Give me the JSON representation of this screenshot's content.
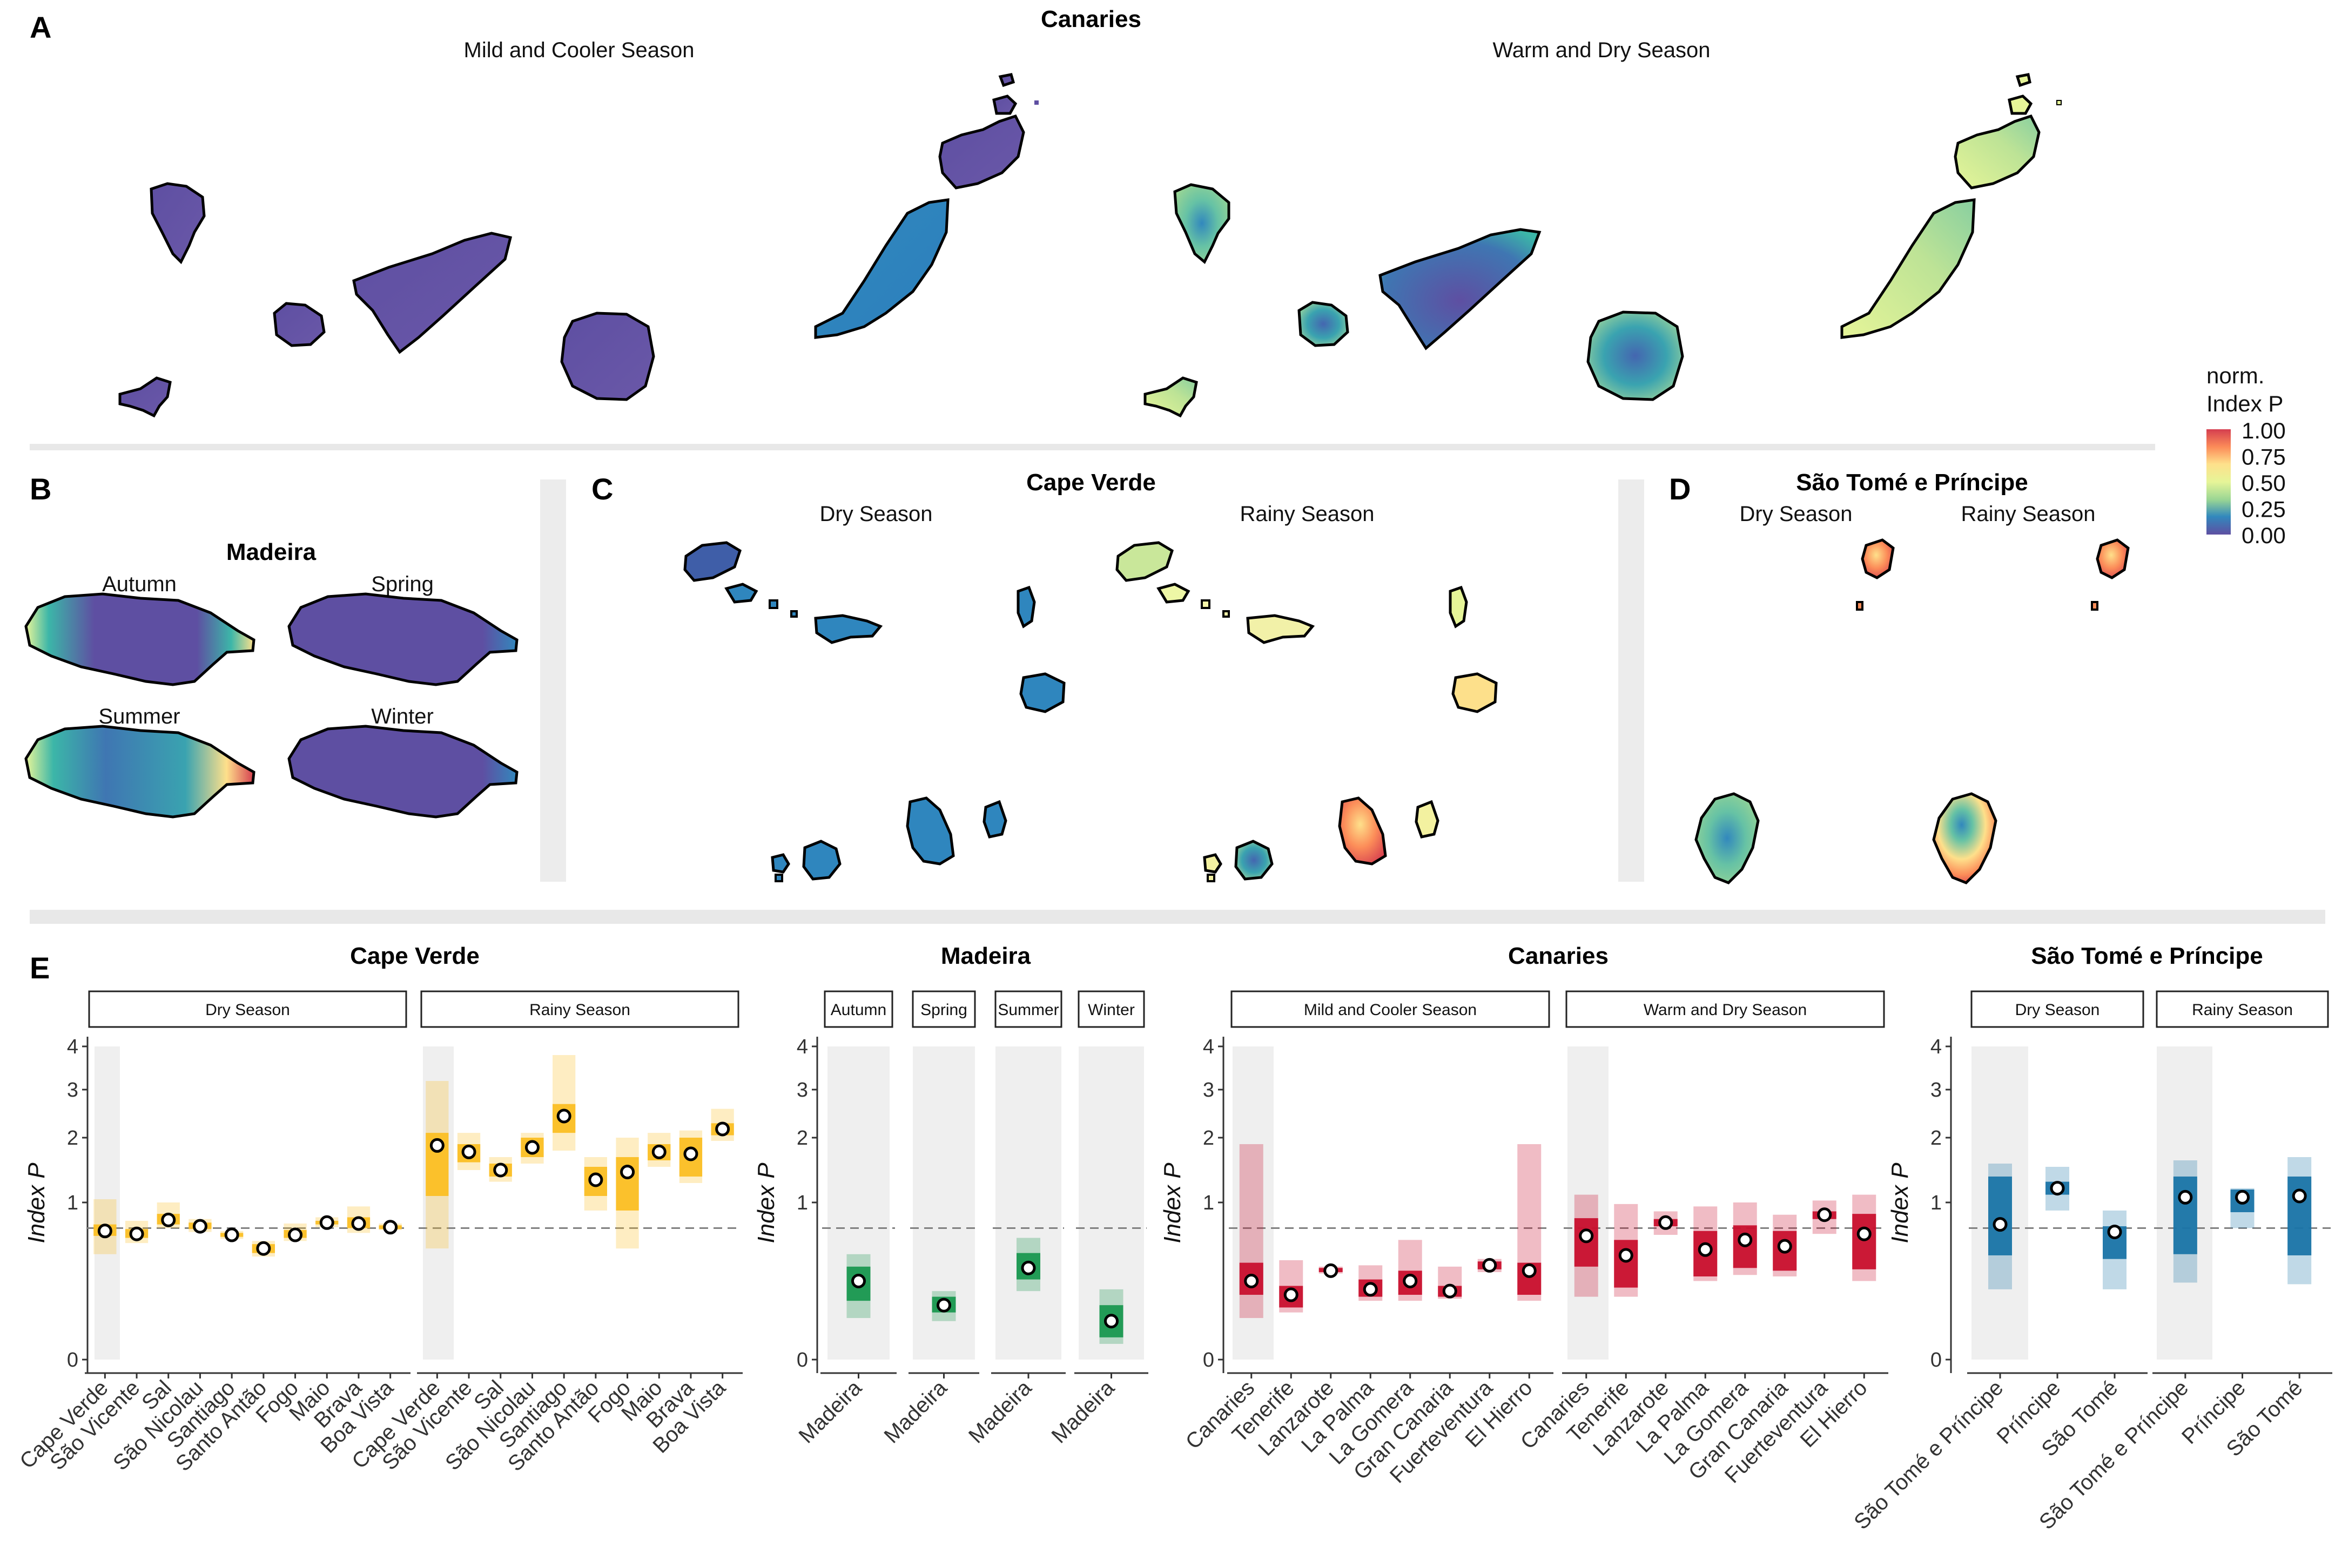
{
  "panels": {
    "A": "A",
    "B": "B",
    "C": "C",
    "D": "D",
    "E": "E"
  },
  "maps": {
    "canaries": {
      "title": "Canaries",
      "season1": "Mild and Cooler Season",
      "season2": "Warm and Dry Season"
    },
    "madeira": {
      "title": "Madeira",
      "autumn": "Autumn",
      "spring": "Spring",
      "summer": "Summer",
      "winter": "Winter"
    },
    "cape_verde": {
      "title": "Cape Verde",
      "season1": "Dry Season",
      "season2": "Rainy Season"
    },
    "stp": {
      "title": "São Tomé e Príncipe",
      "season1": "Dry Season",
      "season2": "Rainy Season"
    }
  },
  "legend": {
    "title_line1": "norm.",
    "title_line2": "Index P",
    "labels": [
      "1.00",
      "0.75",
      "0.50",
      "0.25",
      "0.00"
    ],
    "colors": [
      "#d53e4f",
      "#fc8d59",
      "#fee08b",
      "#e6f598",
      "#99d594",
      "#3288bd",
      "#5e4fa2"
    ]
  },
  "colors": {
    "cape_verde": "#fbbf24",
    "madeira": "#1a9850",
    "canaries": "#c8102e",
    "stp": "#1b75a8",
    "shade": "#efefef",
    "dashed": "#808080"
  },
  "chart_data": [
    {
      "type": "box",
      "title": "Cape Verde",
      "ylabel": "Index P",
      "yticks": [
        "0",
        "1",
        "2",
        "3",
        "4"
      ],
      "reference_line": 0.7,
      "facets": [
        {
          "strip": "Dry Season",
          "categories": [
            "Cape Verde",
            "São Vicente",
            "Sal",
            "São Nicolau",
            "Santiago",
            "Santo Antão",
            "Fogo",
            "Maio",
            "Brava",
            "Boa Vista"
          ],
          "median": [
            0.67,
            0.64,
            0.79,
            0.72,
            0.63,
            0.5,
            0.63,
            0.76,
            0.75,
            0.71
          ],
          "q1": [
            0.62,
            0.6,
            0.74,
            0.69,
            0.61,
            0.46,
            0.6,
            0.74,
            0.7,
            0.69
          ],
          "q3": [
            0.74,
            0.69,
            0.86,
            0.76,
            0.65,
            0.54,
            0.68,
            0.78,
            0.82,
            0.73
          ],
          "lower": [
            0.45,
            0.55,
            0.7,
            0.66,
            0.59,
            0.43,
            0.57,
            0.71,
            0.65,
            0.68
          ],
          "upper": [
            1.05,
            0.78,
            1.0,
            0.8,
            0.67,
            0.57,
            0.75,
            0.82,
            0.95,
            0.75
          ]
        },
        {
          "strip": "Rainy Season",
          "categories": [
            "Cape Verde",
            "São Vicente",
            "Sal",
            "São Nicolau",
            "Santiago",
            "Santo Antão",
            "Fogo",
            "Maio",
            "Brava",
            "Boa Vista"
          ],
          "median": [
            1.88,
            1.78,
            1.5,
            1.85,
            2.45,
            1.35,
            1.47,
            1.78,
            1.75,
            2.18
          ],
          "q1": [
            1.1,
            1.62,
            1.4,
            1.7,
            2.1,
            1.1,
            0.9,
            1.65,
            1.4,
            2.05
          ],
          "q3": [
            2.1,
            1.9,
            1.6,
            2.0,
            2.7,
            1.55,
            1.7,
            1.9,
            2.0,
            2.3
          ],
          "lower": [
            0.5,
            1.5,
            1.32,
            1.6,
            1.8,
            0.9,
            0.5,
            1.55,
            1.3,
            1.95
          ],
          "upper": [
            3.2,
            2.1,
            1.7,
            2.1,
            3.8,
            1.7,
            2.0,
            2.1,
            2.15,
            2.6
          ]
        }
      ]
    },
    {
      "type": "box",
      "title": "Madeira",
      "ylabel": "Index P",
      "yticks": [
        "0",
        "1",
        "2",
        "3",
        "4"
      ],
      "reference_line": 0.7,
      "facets": [
        {
          "strip": "Autumn",
          "categories": [
            "Madeira"
          ],
          "median": [
            0.25
          ],
          "q1": [
            0.14
          ],
          "q3": [
            0.35
          ],
          "lower": [
            0.07
          ],
          "upper": [
            0.45
          ]
        },
        {
          "strip": "Spring",
          "categories": [
            "Madeira"
          ],
          "median": [
            0.12
          ],
          "q1": [
            0.09
          ],
          "q3": [
            0.16
          ],
          "lower": [
            0.06
          ],
          "upper": [
            0.19
          ]
        },
        {
          "strip": "Summer",
          "categories": [
            "Madeira"
          ],
          "median": [
            0.34
          ],
          "q1": [
            0.26
          ],
          "q3": [
            0.46
          ],
          "lower": [
            0.19
          ],
          "upper": [
            0.6
          ]
        },
        {
          "strip": "Winter",
          "categories": [
            "Madeira"
          ],
          "median": [
            0.06
          ],
          "q1": [
            0.02
          ],
          "q3": [
            0.12
          ],
          "lower": [
            0.01
          ],
          "upper": [
            0.2
          ]
        }
      ]
    },
    {
      "type": "box",
      "title": "Canaries",
      "ylabel": "Index P",
      "yticks": [
        "0",
        "1",
        "2",
        "3",
        "4"
      ],
      "reference_line": 0.7,
      "facets": [
        {
          "strip": "Mild and Cooler Season",
          "categories": [
            "Canaries",
            "Tenerife",
            "Lanzarote",
            "La Palma",
            "La Gomera",
            "Gran Canaria",
            "Fuerteventura",
            "El Hierro"
          ],
          "median": [
            0.25,
            0.17,
            0.32,
            0.2,
            0.25,
            0.19,
            0.36,
            0.32
          ],
          "q1": [
            0.17,
            0.11,
            0.31,
            0.16,
            0.17,
            0.16,
            0.33,
            0.17
          ],
          "q3": [
            0.38,
            0.22,
            0.34,
            0.26,
            0.32,
            0.22,
            0.39,
            0.38
          ],
          "lower": [
            0.07,
            0.09,
            0.3,
            0.14,
            0.14,
            0.15,
            0.31,
            0.14
          ],
          "upper": [
            1.9,
            0.4,
            0.35,
            0.36,
            0.58,
            0.35,
            0.41,
            1.9
          ]
        },
        {
          "strip": "Warm and Dry Season",
          "categories": [
            "Canaries",
            "Tenerife",
            "Lanzarote",
            "La Palma",
            "La Gomera",
            "Gran Canaria",
            "Fuerteventura",
            "El Hierro"
          ],
          "median": [
            0.62,
            0.44,
            0.76,
            0.49,
            0.58,
            0.52,
            0.85,
            0.64
          ],
          "q1": [
            0.35,
            0.21,
            0.72,
            0.28,
            0.34,
            0.32,
            0.8,
            0.33
          ],
          "q3": [
            0.81,
            0.58,
            0.8,
            0.67,
            0.73,
            0.67,
            0.89,
            0.86
          ],
          "lower": [
            0.16,
            0.16,
            0.63,
            0.25,
            0.29,
            0.28,
            0.64,
            0.25
          ],
          "upper": [
            1.12,
            0.98,
            0.89,
            0.95,
            1.0,
            0.85,
            1.03,
            1.12
          ]
        },
        {
          "strip_placeholder": ""
        }
      ]
    },
    {
      "type": "box",
      "title": "São Tomé e Príncipe",
      "ylabel": "Index P",
      "yticks": [
        "0",
        "1",
        "2",
        "3",
        "4"
      ],
      "reference_line": 0.7,
      "facets": [
        {
          "strip": "Dry Season",
          "categories": [
            "São Tomé e Príncipe",
            "Príncipe",
            "São Tomé"
          ],
          "median": [
            0.74,
            1.22,
            0.66
          ],
          "q1": [
            0.44,
            1.12,
            0.41
          ],
          "q3": [
            1.4,
            1.32,
            0.72
          ],
          "lower": [
            0.2,
            0.9,
            0.2
          ],
          "upper": [
            1.6,
            1.55,
            0.9
          ]
        },
        {
          "strip": "Rainy Season",
          "categories": [
            "São Tomé e Príncipe",
            "Príncipe",
            "São Tomé"
          ],
          "median": [
            1.08,
            1.08,
            1.1
          ],
          "q1": [
            0.45,
            0.88,
            0.44
          ],
          "q3": [
            1.4,
            1.2,
            1.4
          ],
          "lower": [
            0.24,
            0.7,
            0.23
          ],
          "upper": [
            1.65,
            1.22,
            1.7
          ]
        }
      ]
    }
  ]
}
